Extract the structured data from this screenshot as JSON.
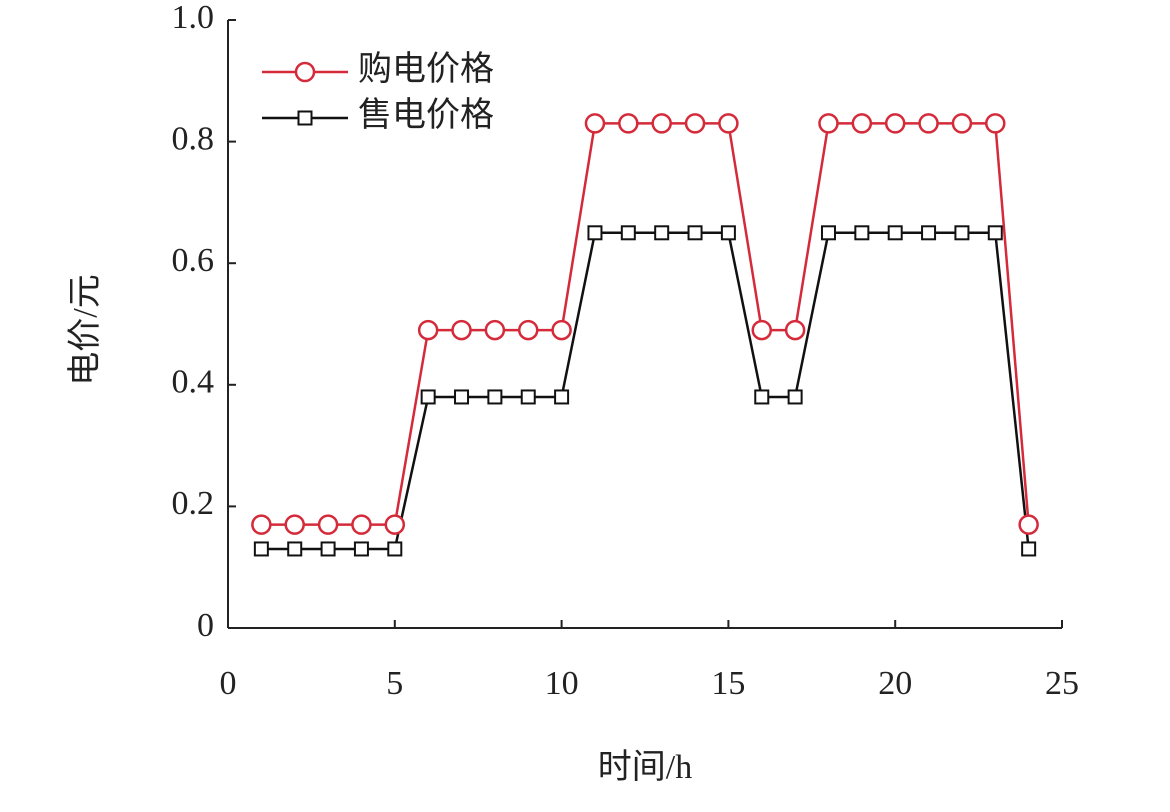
{
  "chart_data": {
    "type": "line",
    "x_label": "时间/h",
    "y_label": "电价/元",
    "x": [
      1,
      2,
      3,
      4,
      5,
      6,
      7,
      8,
      9,
      10,
      11,
      12,
      13,
      14,
      15,
      16,
      17,
      18,
      19,
      20,
      21,
      22,
      23,
      24
    ],
    "series": [
      {
        "name": "购电价格",
        "color": "#d42a3a",
        "marker": "circle",
        "values": [
          0.17,
          0.17,
          0.17,
          0.17,
          0.17,
          0.49,
          0.49,
          0.49,
          0.49,
          0.49,
          0.83,
          0.83,
          0.83,
          0.83,
          0.83,
          0.49,
          0.49,
          0.83,
          0.83,
          0.83,
          0.83,
          0.83,
          0.83,
          0.17
        ]
      },
      {
        "name": "售电价格",
        "color": "#111111",
        "marker": "square",
        "values": [
          0.13,
          0.13,
          0.13,
          0.13,
          0.13,
          0.38,
          0.38,
          0.38,
          0.38,
          0.38,
          0.65,
          0.65,
          0.65,
          0.65,
          0.65,
          0.38,
          0.38,
          0.65,
          0.65,
          0.65,
          0.65,
          0.65,
          0.65,
          0.13
        ]
      }
    ],
    "xlim": [
      0,
      25
    ],
    "xticks": [
      0,
      5,
      10,
      15,
      20,
      25
    ],
    "ylim": [
      0,
      1
    ],
    "yticks": [
      0,
      0.2,
      0.4,
      0.6,
      0.8,
      {
        "value": 1,
        "label": "1.0"
      }
    ],
    "legend": "upper left"
  }
}
